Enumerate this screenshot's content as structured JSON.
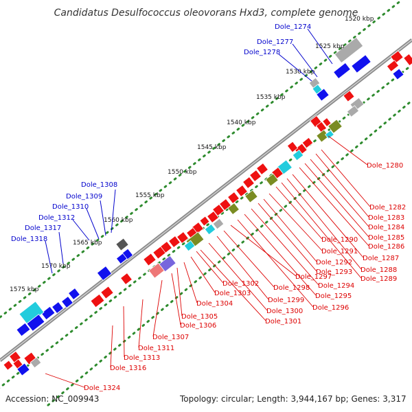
{
  "title": "Candidatus Desulfococcus oleovorans Hxd3, complete genome",
  "footer": {
    "accession": "Accession: NC_009943",
    "summary": "Topology: circular; Length: 3,944,167 bp; Genes: 3,317"
  },
  "colors": {
    "backbone": "#8a8a8a",
    "dots": "#2e8b2e",
    "label_upper": "#0000cc",
    "label_lower": "#dd0000",
    "feature_red": "#ee1111",
    "feature_blue": "#1111ee",
    "feature_olive": "#7a8c22",
    "feature_cyan": "#22ccdd",
    "feature_grey": "#aaaaaa",
    "feature_dark": "#555555",
    "feature_pink": "#ee7777",
    "feature_violet": "#7766dd"
  },
  "ticks": [
    "1520 kbp",
    "1525 kbp",
    "1530 kbp",
    "1535 kbp",
    "1540 kbp",
    "1545 kbp",
    "1550 kbp",
    "1555 kbp",
    "1560 kbp",
    "1565 kbp",
    "1570 kbp",
    "1575 kbp"
  ],
  "upper_labels": [
    "Dole_1274",
    "Dole_1277",
    "Dole_1278",
    "Dole_1308",
    "Dole_1309",
    "Dole_1310",
    "Dole_1312",
    "Dole_1317",
    "Dole_1318"
  ],
  "lower_labels": [
    "Dole_1280",
    "Dole_1282",
    "Dole_1283",
    "Dole_1284",
    "Dole_1285",
    "Dole_1286",
    "Dole_1287",
    "Dole_1288",
    "Dole_1289",
    "Dole_1290",
    "Dole_1291",
    "Dole_1292",
    "Dole_1293",
    "Dole_1294",
    "Dole_1295",
    "Dole_1296",
    "Dole_1297",
    "Dole_1298",
    "Dole_1299",
    "Dole_1300",
    "Dole_1301",
    "Dole_1302",
    "Dole_1303",
    "Dole_1304",
    "Dole_1305",
    "Dole_1306",
    "Dole_1307",
    "Dole_1311",
    "Dole_1313",
    "Dole_1316",
    "Dole_1324"
  ]
}
